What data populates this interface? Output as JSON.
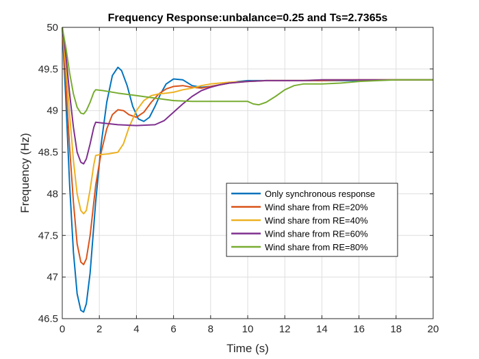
{
  "chart_data": {
    "type": "line",
    "title": "Frequency Response:unbalance=0.25 and Ts=2.7365s",
    "xlabel": "Time (s)",
    "ylabel": "Frequency (Hz)",
    "xlim": [
      0,
      20
    ],
    "ylim": [
      46.5,
      50
    ],
    "xticks": [
      0,
      2,
      4,
      6,
      8,
      10,
      12,
      14,
      16,
      18,
      20
    ],
    "yticks": [
      46.5,
      47,
      47.5,
      48,
      48.5,
      49,
      49.5,
      50
    ],
    "grid": true,
    "legend_position": "center-right",
    "series": [
      {
        "name": "Only synchronous response",
        "color": "#0072BD",
        "x": [
          0,
          0.2,
          0.4,
          0.6,
          0.8,
          1.0,
          1.15,
          1.3,
          1.5,
          1.8,
          2.1,
          2.4,
          2.7,
          3.0,
          3.2,
          3.5,
          3.8,
          4.1,
          4.4,
          4.7,
          5.0,
          5.3,
          5.6,
          6.0,
          6.5,
          7.0,
          7.5,
          8.0,
          8.5,
          9.0,
          9.5,
          10.0,
          10.5,
          11,
          12,
          13,
          14,
          16,
          18,
          20
        ],
        "y": [
          50.0,
          49.1,
          48.1,
          47.3,
          46.8,
          46.6,
          46.58,
          46.68,
          47.05,
          47.9,
          48.6,
          49.1,
          49.42,
          49.52,
          49.48,
          49.3,
          49.05,
          48.9,
          48.87,
          48.92,
          49.05,
          49.2,
          49.32,
          49.38,
          49.37,
          49.3,
          49.28,
          49.29,
          49.31,
          49.33,
          49.35,
          49.36,
          49.36,
          49.36,
          49.36,
          49.36,
          49.36,
          49.36,
          49.37,
          49.37
        ]
      },
      {
        "name": "Wind share from RE=20%",
        "color": "#D95319",
        "x": [
          0,
          0.2,
          0.4,
          0.6,
          0.8,
          1.0,
          1.15,
          1.3,
          1.5,
          1.8,
          2.1,
          2.4,
          2.7,
          3.0,
          3.3,
          3.6,
          4.0,
          4.4,
          4.8,
          5.2,
          5.6,
          6.0,
          6.5,
          7.0,
          7.5,
          8.0,
          8.5,
          9.0,
          10,
          11,
          12,
          13,
          14,
          16,
          18,
          20
        ],
        "y": [
          50.0,
          49.3,
          48.55,
          47.9,
          47.4,
          47.18,
          47.15,
          47.22,
          47.5,
          48.1,
          48.5,
          48.78,
          48.95,
          49.01,
          49.0,
          48.95,
          48.92,
          48.98,
          49.1,
          49.2,
          49.26,
          49.29,
          49.3,
          49.28,
          49.27,
          49.29,
          49.31,
          49.33,
          49.35,
          49.36,
          49.36,
          49.36,
          49.36,
          49.37,
          49.37,
          49.37
        ]
      },
      {
        "name": "Wind share from RE=40%",
        "color": "#EDB120",
        "x": [
          0,
          0.2,
          0.4,
          0.6,
          0.8,
          1.0,
          1.15,
          1.3,
          1.5,
          1.7,
          1.8,
          2.0,
          2.5,
          3.0,
          3.3,
          3.6,
          4.0,
          4.4,
          4.8,
          5.2,
          5.6,
          6.0,
          6.5,
          7.0,
          7.5,
          8.0,
          9.0,
          10,
          11,
          12,
          13,
          14,
          16,
          18,
          20
        ],
        "y": [
          50.0,
          49.5,
          48.95,
          48.4,
          48.0,
          47.8,
          47.76,
          47.8,
          48.05,
          48.35,
          48.46,
          48.47,
          48.48,
          48.5,
          48.6,
          48.8,
          49.0,
          49.12,
          49.18,
          49.2,
          49.21,
          49.22,
          49.25,
          49.27,
          49.3,
          49.32,
          49.34,
          49.35,
          49.36,
          49.36,
          49.36,
          49.37,
          49.37,
          49.37,
          49.37
        ]
      },
      {
        "name": "Wind share from RE=60%",
        "color": "#7E2F8E",
        "x": [
          0,
          0.2,
          0.4,
          0.6,
          0.8,
          1.0,
          1.15,
          1.3,
          1.5,
          1.7,
          1.8,
          2.2,
          3.0,
          4.0,
          5.0,
          5.5,
          6.0,
          6.5,
          7.0,
          7.5,
          8.0,
          8.5,
          9.0,
          10,
          11,
          12,
          13,
          14,
          16,
          18,
          20
        ],
        "y": [
          50.0,
          49.65,
          49.2,
          48.8,
          48.5,
          48.38,
          48.36,
          48.42,
          48.6,
          48.8,
          48.86,
          48.85,
          48.83,
          48.82,
          48.83,
          48.88,
          48.98,
          49.08,
          49.17,
          49.24,
          49.28,
          49.31,
          49.33,
          49.35,
          49.36,
          49.36,
          49.36,
          49.37,
          49.37,
          49.37,
          49.37
        ]
      },
      {
        "name": "Wind share from RE=80%",
        "color": "#77AC30",
        "x": [
          0,
          0.2,
          0.4,
          0.6,
          0.8,
          1.0,
          1.15,
          1.3,
          1.5,
          1.7,
          1.8,
          2.2,
          3.0,
          4.0,
          5.0,
          6.0,
          7.0,
          8.0,
          9.0,
          10.0,
          10.3,
          10.6,
          11.0,
          11.5,
          12.0,
          12.5,
          13.0,
          14.0,
          15.0,
          16.0,
          17.0,
          18.0,
          20.0
        ],
        "y": [
          50.0,
          49.75,
          49.45,
          49.2,
          49.04,
          48.97,
          48.96,
          49.0,
          49.1,
          49.22,
          49.25,
          49.24,
          49.21,
          49.18,
          49.15,
          49.12,
          49.11,
          49.11,
          49.11,
          49.11,
          49.08,
          49.07,
          49.1,
          49.17,
          49.25,
          49.3,
          49.32,
          49.32,
          49.33,
          49.35,
          49.36,
          49.37,
          49.37
        ]
      }
    ]
  }
}
